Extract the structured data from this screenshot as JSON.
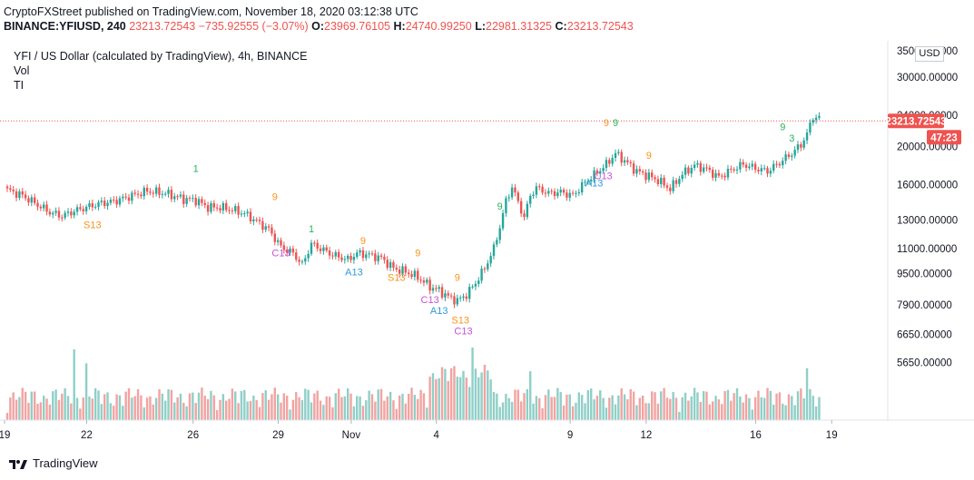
{
  "header": {
    "published_line": "CryptoFXStreet published on TradingView.com, November 18, 2020 03:12:38 UTC",
    "symbol_interval": "BINANCE:YFIUSD, 240",
    "change": "23213.72543 −735.92555 (−3.07%)",
    "o_label": "O:",
    "o_value": "23969.76105",
    "h_label": "H:",
    "h_value": "24740.99250",
    "l_label": "L:",
    "l_value": "22981.31325",
    "c_label": "C:",
    "c_value": "23213.72543"
  },
  "legend": {
    "title": "YFI / US Dollar (calculated by TradingView), 4h, BINANCE",
    "vol": "Vol",
    "ti": "TI"
  },
  "currency_button": "USD",
  "footer": {
    "brand": "TradingView"
  },
  "colors": {
    "up": "#26a69a",
    "down": "#ef5350",
    "up_vol": "#8fcfc7",
    "down_vol": "#f2a3a1",
    "price_line": "#ef5350"
  },
  "chart_data": {
    "type": "candlestick",
    "y_scale": "log",
    "ylim": [
      4800,
      35000
    ],
    "y_tick_labels": [
      "35000.00000",
      "30000.00000",
      "24000.00000",
      "20000.00000",
      "16000.00000",
      "13000.00000",
      "11000.00000",
      "9500.00000",
      "7900.00000",
      "6650.00000",
      "5650.00000"
    ],
    "x_tick_labels": [
      "19",
      "22",
      "26",
      "29",
      "Nov",
      "4",
      "9",
      "12",
      "16",
      "19"
    ],
    "last_price_label": "23213.72543",
    "countdown_label": "47:23",
    "anchor_points": [
      [
        0,
        15500
      ],
      [
        5,
        15000
      ],
      [
        10,
        14200
      ],
      [
        14,
        13600
      ],
      [
        18,
        13300
      ],
      [
        22,
        13700
      ],
      [
        26,
        14000
      ],
      [
        30,
        14300
      ],
      [
        35,
        14500
      ],
      [
        40,
        14900
      ],
      [
        46,
        15400
      ],
      [
        52,
        15200
      ],
      [
        58,
        14700
      ],
      [
        62,
        14600
      ],
      [
        66,
        14000
      ],
      [
        70,
        14000
      ],
      [
        74,
        13800
      ],
      [
        78,
        13500
      ],
      [
        82,
        12900
      ],
      [
        86,
        12300
      ],
      [
        90,
        11100
      ],
      [
        94,
        10700
      ],
      [
        97,
        10000
      ],
      [
        100,
        11300
      ],
      [
        103,
        11000
      ],
      [
        107,
        10600
      ],
      [
        112,
        10300
      ],
      [
        115,
        10700
      ],
      [
        119,
        10600
      ],
      [
        123,
        10400
      ],
      [
        127,
        9800
      ],
      [
        131,
        9600
      ],
      [
        135,
        9300
      ],
      [
        139,
        8800
      ],
      [
        142,
        8600
      ],
      [
        145,
        8300
      ],
      [
        148,
        8100
      ],
      [
        151,
        8400
      ],
      [
        154,
        9000
      ],
      [
        157,
        9800
      ],
      [
        160,
        11000
      ],
      [
        162,
        12500
      ],
      [
        164,
        14500
      ],
      [
        166,
        15800
      ],
      [
        168,
        14400
      ],
      [
        170,
        13200
      ],
      [
        172,
        15000
      ],
      [
        174,
        15700
      ],
      [
        178,
        15200
      ],
      [
        182,
        15300
      ],
      [
        186,
        15000
      ],
      [
        190,
        16200
      ],
      [
        194,
        17200
      ],
      [
        197,
        18000
      ],
      [
        200,
        19200
      ],
      [
        203,
        18400
      ],
      [
        207,
        17300
      ],
      [
        211,
        16800
      ],
      [
        214,
        16400
      ],
      [
        218,
        15600
      ],
      [
        222,
        17000
      ],
      [
        226,
        17900
      ],
      [
        230,
        17500
      ],
      [
        234,
        16700
      ],
      [
        238,
        17400
      ],
      [
        242,
        18000
      ],
      [
        246,
        17600
      ],
      [
        250,
        17300
      ],
      [
        254,
        18200
      ],
      [
        258,
        19200
      ],
      [
        261,
        20200
      ],
      [
        263,
        21500
      ],
      [
        265,
        23900
      ],
      [
        267,
        23214
      ]
    ],
    "annotations": [
      {
        "text": "1",
        "i": 62,
        "price": 17200,
        "color": "green"
      },
      {
        "text": "9",
        "i": 88,
        "price": 14600,
        "color": "orange"
      },
      {
        "text": "S13",
        "i": 28,
        "price": 12400,
        "color": "orange"
      },
      {
        "text": "C13",
        "i": 90,
        "price": 10500,
        "color": "violet"
      },
      {
        "text": "1",
        "i": 100,
        "price": 12100,
        "color": "green"
      },
      {
        "text": "9",
        "i": 117,
        "price": 11300,
        "color": "orange"
      },
      {
        "text": "A13",
        "i": 114,
        "price": 9400,
        "color": "blue"
      },
      {
        "text": "9",
        "i": 135,
        "price": 10500,
        "color": "orange"
      },
      {
        "text": "S13",
        "i": 128,
        "price": 9100,
        "color": "orange"
      },
      {
        "text": "9",
        "i": 148,
        "price": 9100,
        "color": "orange"
      },
      {
        "text": "C13",
        "i": 139,
        "price": 8000,
        "color": "violet"
      },
      {
        "text": "A13",
        "i": 142,
        "price": 7500,
        "color": "blue"
      },
      {
        "text": "S13",
        "i": 149,
        "price": 7100,
        "color": "orange"
      },
      {
        "text": "C13",
        "i": 150,
        "price": 6650,
        "color": "violet"
      },
      {
        "text": "9",
        "i": 162,
        "price": 13800,
        "color": "green"
      },
      {
        "text": "9",
        "i": 197,
        "price": 22500,
        "color": "orange"
      },
      {
        "text": "9",
        "i": 200,
        "price": 22500,
        "color": "green"
      },
      {
        "text": "C13",
        "i": 196,
        "price": 16500,
        "color": "violet"
      },
      {
        "text": "A13",
        "i": 193,
        "price": 15800,
        "color": "blue"
      },
      {
        "text": "9",
        "i": 211,
        "price": 18600,
        "color": "orange"
      },
      {
        "text": "9",
        "i": 255,
        "price": 22000,
        "color": "green"
      },
      {
        "text": "3",
        "i": 258,
        "price": 20600,
        "color": "green"
      }
    ]
  }
}
